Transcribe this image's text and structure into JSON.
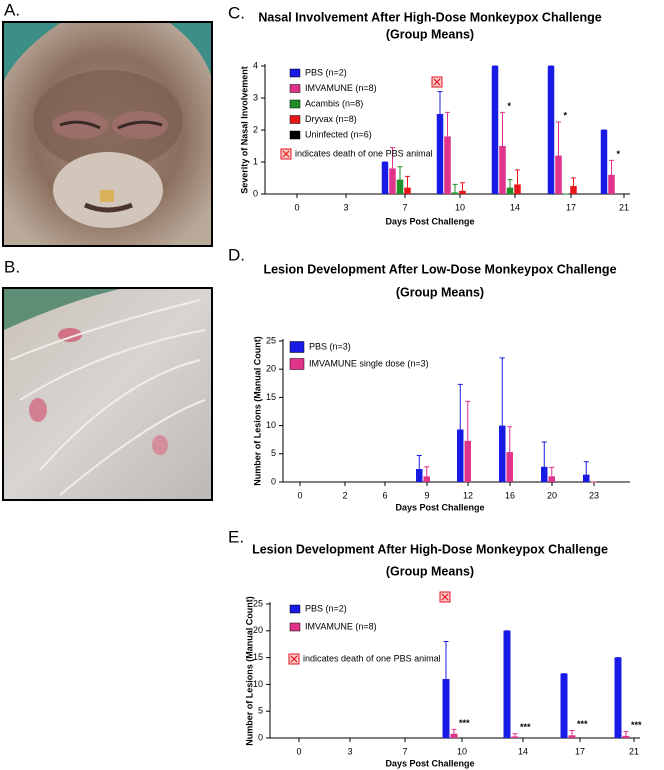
{
  "photo_labels": [
    "A.",
    "B."
  ],
  "chart_data": [
    {
      "type": "bar",
      "panel_label": "C.",
      "title": "Nasal Involvement After High-Dose Monkeypox Challenge",
      "subtitle": "(Group Means)",
      "x_label": "Days Post Challenge",
      "y_label": "Severity of Nasal  Involvement",
      "categories": [
        "0",
        "3",
        "7",
        "10",
        "14",
        "17",
        "21"
      ],
      "ylim": [
        0,
        4
      ],
      "yticks": [
        0,
        1,
        2,
        3,
        4
      ],
      "note": "indicates death of one PBS animal",
      "series": [
        {
          "name": "PBS (n=2)",
          "color": "#1a1ae6",
          "values": [
            null,
            null,
            1.0,
            2.5,
            4,
            4,
            2.0
          ],
          "errors": [
            null,
            null,
            0,
            0.7,
            0,
            0,
            0
          ]
        },
        {
          "name": "IMVAMUNE (n=8)",
          "color": "#e0338a",
          "values": [
            null,
            null,
            0.8,
            1.8,
            1.5,
            1.2,
            0.6
          ],
          "errors": [
            null,
            null,
            0.65,
            0.75,
            1.05,
            1.05,
            0.45
          ],
          "significance": [
            null,
            null,
            null,
            null,
            "*",
            "*",
            "*"
          ]
        },
        {
          "name": "Acambis (n=8)",
          "color": "#1f8f2a",
          "values": [
            null,
            null,
            0.45,
            0.05,
            0.2,
            0,
            null
          ],
          "errors": [
            null,
            null,
            0.4,
            0.25,
            0.25,
            0,
            null
          ]
        },
        {
          "name": "Dryvax (n=8)",
          "color": "#e8161b",
          "values": [
            null,
            null,
            0.2,
            0.1,
            0.3,
            0.25,
            null
          ],
          "errors": [
            null,
            null,
            0.35,
            0.25,
            0.45,
            0.25,
            null
          ]
        },
        {
          "name": "Uninfected (n=6)",
          "color": "#000000",
          "values": [
            null,
            null,
            0,
            0,
            0,
            0,
            null
          ],
          "errors": [
            null,
            null,
            0,
            0,
            0,
            0,
            null
          ]
        }
      ]
    },
    {
      "type": "bar",
      "panel_label": "D.",
      "title": "Lesion  Development After Low-Dose Monkeypox Challenge",
      "subtitle": "(Group Means)",
      "x_label": "Days Post Challenge",
      "y_label": "Number of Lesions (Manual Count)",
      "categories": [
        "0",
        "2",
        "6",
        "9",
        "12",
        "16",
        "20",
        "23"
      ],
      "ylim": [
        0,
        25
      ],
      "yticks": [
        0,
        5,
        10,
        15,
        20,
        25
      ],
      "series": [
        {
          "name": "PBS (n=3)",
          "color": "#1a1ae6",
          "values": [
            null,
            null,
            null,
            2.3,
            9.3,
            10,
            2.7,
            1.3
          ],
          "errors": [
            null,
            null,
            null,
            2.4,
            8,
            12,
            4.4,
            2.3
          ]
        },
        {
          "name": "IMVAMUNE single dose (n=3)",
          "color": "#e0338a",
          "values": [
            null,
            null,
            null,
            1.0,
            7.3,
            5.3,
            1.0,
            0
          ],
          "errors": [
            null,
            null,
            null,
            1.7,
            7,
            4.5,
            1.6,
            0
          ]
        }
      ]
    },
    {
      "type": "bar",
      "panel_label": "E.",
      "title": "Lesion  Development After High-Dose Monkeypox Challenge",
      "subtitle": "(Group Means)",
      "x_label": "Days Post Challenge",
      "y_label": "Number of Lesions (Manual Count)",
      "categories": [
        "0",
        "3",
        "7",
        "10",
        "14",
        "17",
        "21"
      ],
      "ylim": [
        0,
        25
      ],
      "yticks": [
        0,
        5,
        10,
        15,
        20,
        25
      ],
      "note": "indicates death of one PBS animal",
      "series": [
        {
          "name": "PBS (n=2)",
          "color": "#1a1ae6",
          "values": [
            null,
            null,
            null,
            11,
            20,
            12,
            15
          ],
          "errors": [
            null,
            null,
            null,
            7,
            0,
            0,
            0
          ]
        },
        {
          "name": "IMVAMUNE (n=8)",
          "color": "#e0338a",
          "values": [
            null,
            null,
            null,
            0.8,
            0.3,
            0.5,
            0.4
          ],
          "errors": [
            null,
            null,
            null,
            0.8,
            0.5,
            0.9,
            0.8
          ],
          "significance": [
            null,
            null,
            null,
            "***",
            "***",
            "***",
            "***"
          ]
        }
      ]
    }
  ]
}
